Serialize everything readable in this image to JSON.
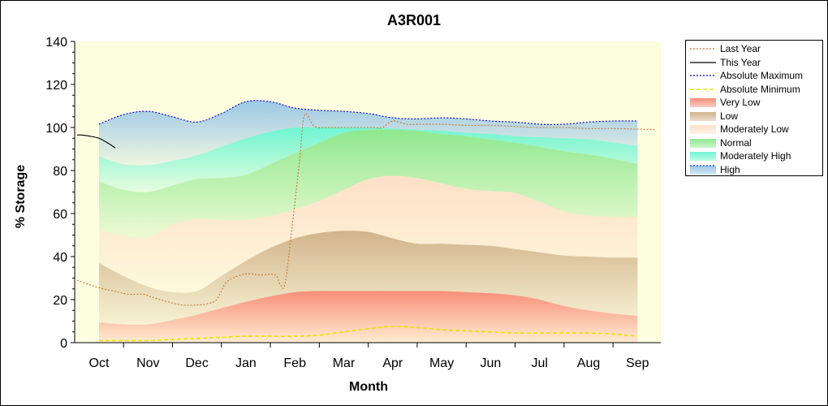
{
  "chart_data": {
    "type": "area",
    "title": "A3R001",
    "xlabel": "Month",
    "ylabel": "% Storage",
    "ylim": [
      0,
      140
    ],
    "yticks": [
      0,
      20,
      40,
      60,
      80,
      100,
      120,
      140
    ],
    "months": [
      "Oct",
      "Nov",
      "Dec",
      "Jan",
      "Feb",
      "Mar",
      "Apr",
      "May",
      "Jun",
      "Jul",
      "Aug",
      "Sep"
    ],
    "grid": false,
    "legend_position": "right",
    "bands": {
      "x": [
        0,
        0.5,
        1,
        1.5,
        2,
        2.5,
        3,
        3.5,
        4,
        4.5,
        5,
        5.5,
        6,
        6.5,
        7,
        7.5,
        8,
        8.5,
        9,
        9.5,
        10,
        10.5,
        11
      ],
      "very_low_top": [
        9.5,
        8.5,
        8.5,
        10.5,
        13,
        16,
        19,
        21.5,
        23.5,
        24,
        24,
        24,
        24,
        24,
        24,
        23.5,
        23,
        22,
        20,
        17,
        15,
        13.5,
        12.5
      ],
      "low_top": [
        37,
        31,
        26,
        23.5,
        24,
        31,
        38,
        44,
        48.5,
        51,
        52,
        51.5,
        48.5,
        46,
        46,
        45.5,
        45,
        43.5,
        42,
        40.5,
        40,
        39.5,
        39.5
      ],
      "moderately_low_top": [
        52,
        50,
        49,
        55,
        57.5,
        57,
        57,
        59,
        62,
        66,
        71,
        76,
        77.5,
        76.5,
        74,
        71.5,
        70.5,
        69.5,
        65.5,
        61,
        59,
        58.5,
        58.5
      ],
      "normal_top": [
        75,
        71,
        70,
        73,
        76,
        76.5,
        78,
        83,
        88,
        93,
        97.5,
        99,
        99,
        98.5,
        97,
        96,
        94.5,
        93,
        91,
        89,
        87.5,
        85.5,
        83
      ],
      "moderately_high_top": [
        86.5,
        83,
        82.5,
        84.5,
        87,
        91,
        95,
        98,
        100,
        100,
        100,
        100,
        99.5,
        99,
        98.5,
        97.5,
        97,
        96,
        95.5,
        95,
        94.5,
        93,
        91.5
      ],
      "high_top": [
        101.5,
        106,
        107.5,
        105,
        102.5,
        106.5,
        112,
        112,
        109,
        108,
        107.5,
        106.5,
        104.5,
        104,
        104.5,
        104,
        103,
        102.5,
        101.5,
        101.5,
        102.5,
        103,
        103
      ]
    },
    "series": [
      {
        "name": "Last Year",
        "color": "#c87533",
        "style": "dotted",
        "x": [
          -0.45,
          -0.2,
          0,
          0.3,
          0.6,
          0.9,
          1.1,
          1.4,
          1.7,
          2.0,
          2.2,
          2.4,
          2.6,
          2.9,
          3.1,
          3.3,
          3.6,
          3.7,
          3.8,
          3.95,
          4.1,
          4.2,
          4.4,
          4.7,
          5.0,
          5.3,
          5.6,
          5.8,
          6.0,
          6.3,
          6.6,
          7.0,
          7.5,
          8.0,
          8.5,
          9.0,
          9.5,
          10.0,
          10.5,
          11.35
        ],
        "y": [
          29,
          27,
          25.5,
          24,
          22.5,
          22.5,
          21,
          19,
          17.5,
          17.5,
          18,
          20,
          28,
          31.5,
          32,
          31.5,
          31.5,
          27,
          27.5,
          55,
          85,
          106,
          100.5,
          100,
          100,
          100,
          100,
          100,
          103,
          101.5,
          101.5,
          101.5,
          101,
          101,
          100.5,
          100,
          100,
          99.5,
          99.5,
          99
        ]
      },
      {
        "name": "This Year",
        "color": "#000000",
        "style": "solid",
        "x": [
          -0.45,
          -0.35,
          -0.2,
          0,
          0.2,
          0.33
        ],
        "y": [
          96.5,
          96.5,
          96,
          95,
          92.5,
          90.5
        ]
      },
      {
        "name": "Absolute Maximum",
        "color": "#0000cc",
        "style": "dotted",
        "x": [
          0,
          0.5,
          1,
          1.5,
          2,
          2.5,
          3,
          3.5,
          4,
          4.5,
          5,
          5.5,
          6,
          6.5,
          7,
          7.5,
          8,
          8.5,
          9,
          9.5,
          10,
          10.5,
          11
        ],
        "y": [
          101.5,
          106,
          107.5,
          105,
          102.5,
          106.5,
          112,
          112,
          109,
          108,
          107.5,
          106.5,
          104.5,
          104,
          104.5,
          104,
          103,
          102.5,
          101.5,
          101.5,
          102.5,
          103,
          103
        ]
      },
      {
        "name": "Absolute Minimum",
        "color": "#e6e600",
        "style": "dashed",
        "x": [
          0,
          0.5,
          1,
          1.5,
          2,
          2.5,
          3,
          3.5,
          4,
          4.5,
          5,
          5.5,
          6,
          6.5,
          7,
          7.5,
          8,
          8.5,
          9,
          9.5,
          10,
          10.5,
          11
        ],
        "y": [
          1,
          1,
          1,
          1.5,
          2,
          2.5,
          3,
          3,
          3,
          3.5,
          5,
          6.5,
          7.5,
          7,
          6,
          5.5,
          5,
          4.5,
          4.5,
          4.5,
          4.5,
          4,
          3
        ]
      }
    ]
  },
  "legend": {
    "items": [
      {
        "label": "Last Year",
        "kind": "line",
        "color": "#c87533",
        "dash": "2,2"
      },
      {
        "label": "This Year",
        "kind": "line",
        "color": "#000000",
        "dash": ""
      },
      {
        "label": "Absolute Maximum",
        "kind": "line",
        "color": "#0000cc",
        "dash": "2,2"
      },
      {
        "label": "Absolute Minimum",
        "kind": "line",
        "color": "#e6e600",
        "dash": "5,3"
      },
      {
        "label": "Very Low",
        "kind": "fill",
        "color": "#f98e7a"
      },
      {
        "label": "Low",
        "kind": "fill",
        "color": "#d2b48c"
      },
      {
        "label": "Moderately Low",
        "kind": "fill",
        "color": "#fde0c8"
      },
      {
        "label": "Normal",
        "kind": "fill",
        "color": "#8fe88f"
      },
      {
        "label": "Moderately High",
        "kind": "fill",
        "color": "#6ff5d2"
      },
      {
        "label": "High",
        "kind": "fill",
        "color": "#9cc8e6"
      }
    ]
  },
  "colors": {
    "plot_background": "#fdfde0",
    "very_low": "#f98e7a",
    "low": "#d2b48c",
    "moderately_low": "#fde0c8",
    "normal": "#8fe88f",
    "moderately_high": "#6ff5d2",
    "high": "#9cc8e6"
  }
}
